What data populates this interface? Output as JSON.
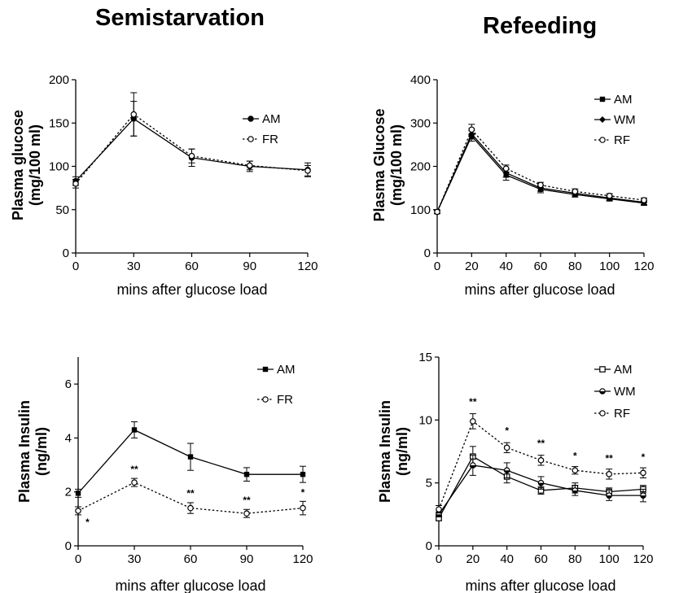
{
  "titles": {
    "left": "Semistarvation",
    "right": "Refeeding"
  },
  "chart_data": [
    {
      "id": "ss-glucose",
      "type": "line",
      "ylabel_lines": [
        "Plasma glucose",
        "(mg/100 ml)"
      ],
      "xlabel": "mins after glucose load",
      "xlim": [
        0,
        120
      ],
      "ylim": [
        0,
        200
      ],
      "xticks": [
        0,
        30,
        60,
        90,
        120
      ],
      "yticks": [
        0,
        50,
        100,
        150,
        200
      ],
      "legend_position": "right",
      "series": [
        {
          "name": "AM",
          "style": "solid",
          "marker": "filled-circle",
          "x": [
            0,
            30,
            60,
            90,
            120
          ],
          "y": [
            83,
            155,
            110,
            100,
            96
          ],
          "err": [
            5,
            20,
            10,
            6,
            8
          ]
        },
        {
          "name": "FR",
          "style": "dotted",
          "marker": "open-circle",
          "x": [
            0,
            30,
            60,
            90,
            120
          ],
          "y": [
            80,
            160,
            112,
            101,
            95
          ],
          "err": [
            5,
            25,
            8,
            5,
            6
          ]
        }
      ]
    },
    {
      "id": "rf-glucose",
      "type": "line",
      "ylabel_lines": [
        "Plasma Glucose",
        "(mg/100 ml)"
      ],
      "xlabel": "mins after glucose load",
      "xlim": [
        0,
        120
      ],
      "ylim": [
        0,
        400
      ],
      "xticks": [
        0,
        20,
        40,
        60,
        80,
        100,
        120
      ],
      "yticks": [
        0,
        100,
        200,
        300,
        400
      ],
      "legend_position": "top-right",
      "series": [
        {
          "name": "AM",
          "style": "solid",
          "marker": "filled-square",
          "x": [
            0,
            20,
            40,
            60,
            80,
            100,
            120
          ],
          "y": [
            95,
            270,
            180,
            147,
            135,
            125,
            115
          ],
          "err": [
            4,
            12,
            12,
            8,
            6,
            5,
            5
          ]
        },
        {
          "name": "WM",
          "style": "solid",
          "marker": "filled-diamond",
          "x": [
            0,
            20,
            40,
            60,
            80,
            100,
            120
          ],
          "y": [
            95,
            275,
            185,
            150,
            138,
            127,
            117
          ],
          "err": [
            4,
            12,
            10,
            7,
            6,
            5,
            5
          ]
        },
        {
          "name": "RF",
          "style": "dotted",
          "marker": "open-circle",
          "x": [
            0,
            20,
            40,
            60,
            80,
            100,
            120
          ],
          "y": [
            95,
            285,
            195,
            157,
            142,
            132,
            122
          ],
          "err": [
            4,
            12,
            8,
            6,
            6,
            5,
            5
          ]
        }
      ]
    },
    {
      "id": "ss-insulin",
      "type": "line",
      "ylabel_lines": [
        "Plasma Insulin",
        "(ng/ml)"
      ],
      "xlabel": "mins after glucose load",
      "xlim": [
        0,
        120
      ],
      "ylim": [
        0,
        7
      ],
      "xticks": [
        0,
        30,
        60,
        90,
        120
      ],
      "yticks": [
        0,
        2,
        4,
        6
      ],
      "legend_position": "top-right",
      "series": [
        {
          "name": "AM",
          "style": "solid",
          "marker": "filled-square",
          "x": [
            0,
            30,
            60,
            90,
            120
          ],
          "y": [
            1.95,
            4.3,
            3.3,
            2.65,
            2.65
          ],
          "err": [
            0.15,
            0.3,
            0.5,
            0.25,
            0.3
          ]
        },
        {
          "name": "FR",
          "style": "dotted",
          "marker": "open-circle",
          "x": [
            0,
            30,
            60,
            90,
            120
          ],
          "y": [
            1.3,
            2.35,
            1.4,
            1.2,
            1.4
          ],
          "err": [
            0.15,
            0.15,
            0.2,
            0.15,
            0.25
          ]
        }
      ],
      "annotations": [
        {
          "text": "*",
          "x": 5,
          "y": 0.75
        },
        {
          "text": "**",
          "x": 30,
          "y": 2.72
        },
        {
          "text": "**",
          "x": 60,
          "y": 1.82
        },
        {
          "text": "**",
          "x": 90,
          "y": 1.57
        },
        {
          "text": "*",
          "x": 120,
          "y": 1.85
        }
      ]
    },
    {
      "id": "rf-insulin",
      "type": "line",
      "ylabel_lines": [
        "Plasma Insulin",
        "(ng/ml)"
      ],
      "xlabel": "mins after glucose load",
      "xlim": [
        0,
        120
      ],
      "ylim": [
        0,
        15
      ],
      "xticks": [
        0,
        20,
        40,
        60,
        80,
        100,
        120
      ],
      "yticks": [
        0,
        5,
        10,
        15
      ],
      "legend_position": "top-right",
      "series": [
        {
          "name": "AM",
          "style": "solid",
          "marker": "open-square",
          "x": [
            0,
            20,
            40,
            60,
            80,
            100,
            120
          ],
          "y": [
            2.2,
            7.1,
            5.5,
            4.4,
            4.6,
            4.3,
            4.5
          ],
          "err": [
            0.2,
            0.8,
            0.5,
            0.3,
            0.4,
            0.3,
            0.3
          ]
        },
        {
          "name": "WM",
          "style": "solid",
          "marker": "half-circle",
          "x": [
            0,
            20,
            40,
            60,
            80,
            100,
            120
          ],
          "y": [
            2.5,
            6.4,
            6.0,
            5.0,
            4.4,
            4.0,
            4.0
          ],
          "err": [
            0.2,
            0.8,
            0.6,
            0.5,
            0.4,
            0.4,
            0.5
          ]
        },
        {
          "name": "RF",
          "style": "dotted",
          "marker": "open-circle",
          "x": [
            0,
            20,
            40,
            60,
            80,
            100,
            120
          ],
          "y": [
            2.9,
            9.9,
            7.8,
            6.8,
            6.0,
            5.7,
            5.8
          ],
          "err": [
            0.3,
            0.6,
            0.4,
            0.4,
            0.3,
            0.4,
            0.4
          ]
        }
      ],
      "annotations": [
        {
          "text": "**",
          "x": 20,
          "y": 11.2
        },
        {
          "text": "*",
          "x": 40,
          "y": 8.9
        },
        {
          "text": "**",
          "x": 60,
          "y": 7.9
        },
        {
          "text": "*",
          "x": 80,
          "y": 6.9
        },
        {
          "text": "**",
          "x": 100,
          "y": 6.7
        },
        {
          "text": "*",
          "x": 120,
          "y": 6.8
        }
      ]
    }
  ]
}
